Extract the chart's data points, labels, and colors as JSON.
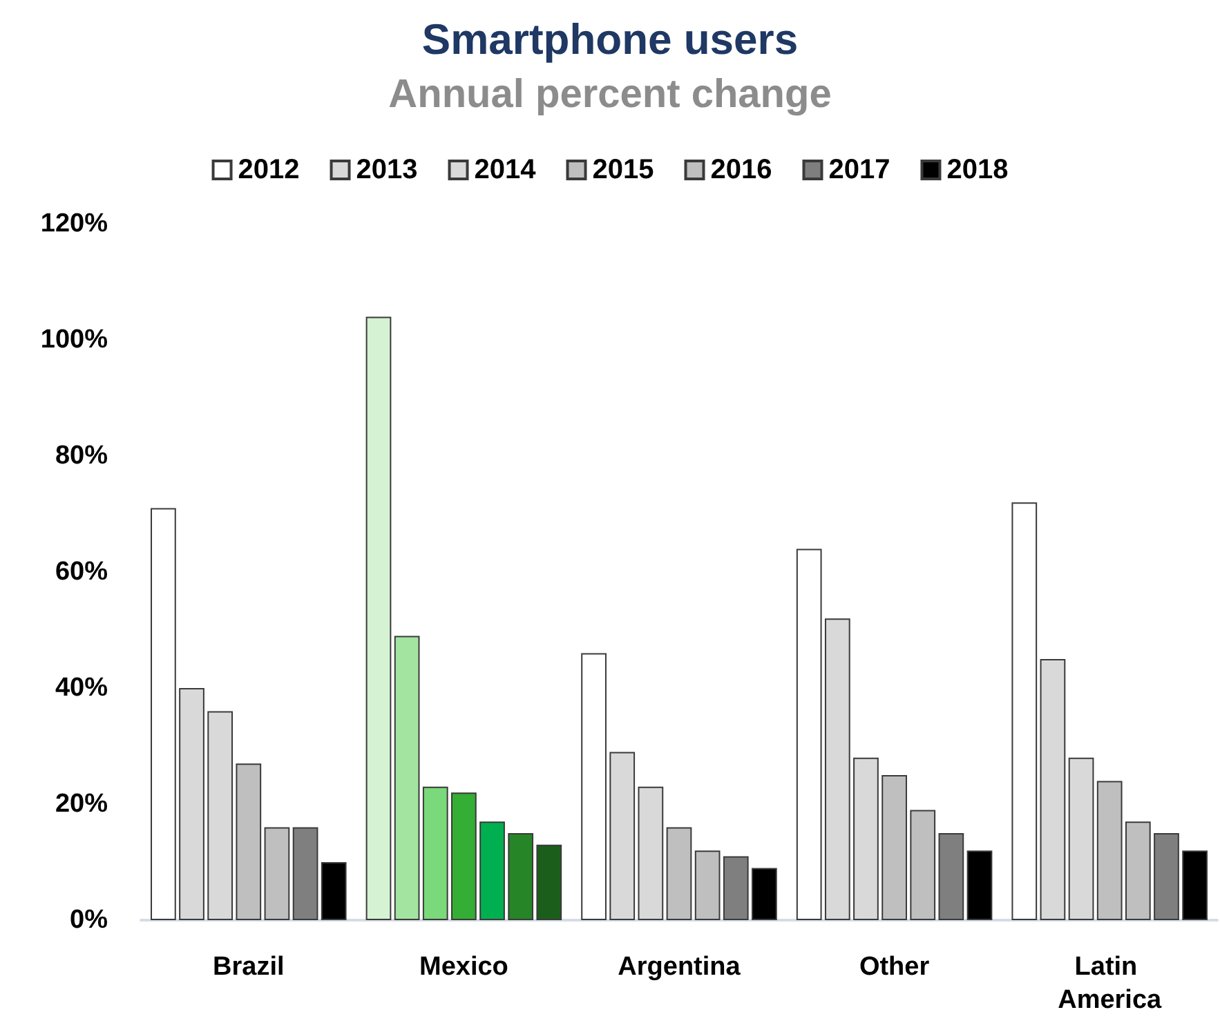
{
  "chart_data": {
    "type": "bar",
    "title": "Smartphone users",
    "subtitle": "Annual percent change",
    "categories": [
      "Brazil",
      "Mexico",
      "Argentina",
      "Other",
      "Latin America"
    ],
    "series": [
      {
        "name": "2012",
        "color": "#ffffff",
        "colors": [
          "#ffffff",
          "#d5f2d3",
          "#ffffff",
          "#ffffff",
          "#ffffff"
        ],
        "values": [
          71,
          104,
          46,
          64,
          72
        ]
      },
      {
        "name": "2013",
        "color": "#d9d9d9",
        "colors": [
          "#d9d9d9",
          "#a3e5a0",
          "#d9d9d9",
          "#d9d9d9",
          "#d9d9d9"
        ],
        "values": [
          40,
          49,
          29,
          52,
          45
        ]
      },
      {
        "name": "2014",
        "color": "#d9d9d9",
        "colors": [
          "#d9d9d9",
          "#7ad97a",
          "#d9d9d9",
          "#d9d9d9",
          "#d9d9d9"
        ],
        "values": [
          36,
          23,
          23,
          28,
          28
        ]
      },
      {
        "name": "2015",
        "color": "#bfbfbf",
        "colors": [
          "#bfbfbf",
          "#34ae35",
          "#bfbfbf",
          "#bfbfbf",
          "#bfbfbf"
        ],
        "values": [
          27,
          22,
          16,
          25,
          24
        ]
      },
      {
        "name": "2016",
        "color": "#bfbfbf",
        "colors": [
          "#bfbfbf",
          "#00b050",
          "#bfbfbf",
          "#bfbfbf",
          "#bfbfbf"
        ],
        "values": [
          16,
          17,
          12,
          19,
          17
        ]
      },
      {
        "name": "2017",
        "color": "#7f7f7f",
        "colors": [
          "#7f7f7f",
          "#268526",
          "#7f7f7f",
          "#7f7f7f",
          "#7f7f7f"
        ],
        "values": [
          16,
          15,
          11,
          15,
          15
        ]
      },
      {
        "name": "2018",
        "color": "#000000",
        "colors": [
          "#000000",
          "#1b5e1b",
          "#000000",
          "#000000",
          "#000000"
        ],
        "values": [
          10,
          13,
          9,
          12,
          12
        ]
      }
    ],
    "ylim": [
      0,
      120
    ],
    "yticks": [
      {
        "value": 0,
        "label": "0%"
      },
      {
        "value": 20,
        "label": "20%"
      },
      {
        "value": 40,
        "label": "40%"
      },
      {
        "value": 60,
        "label": "60%"
      },
      {
        "value": 80,
        "label": "80%"
      },
      {
        "value": 100,
        "label": "100%"
      },
      {
        "value": 120,
        "label": "120%"
      }
    ],
    "grid": false,
    "legend": "top"
  }
}
